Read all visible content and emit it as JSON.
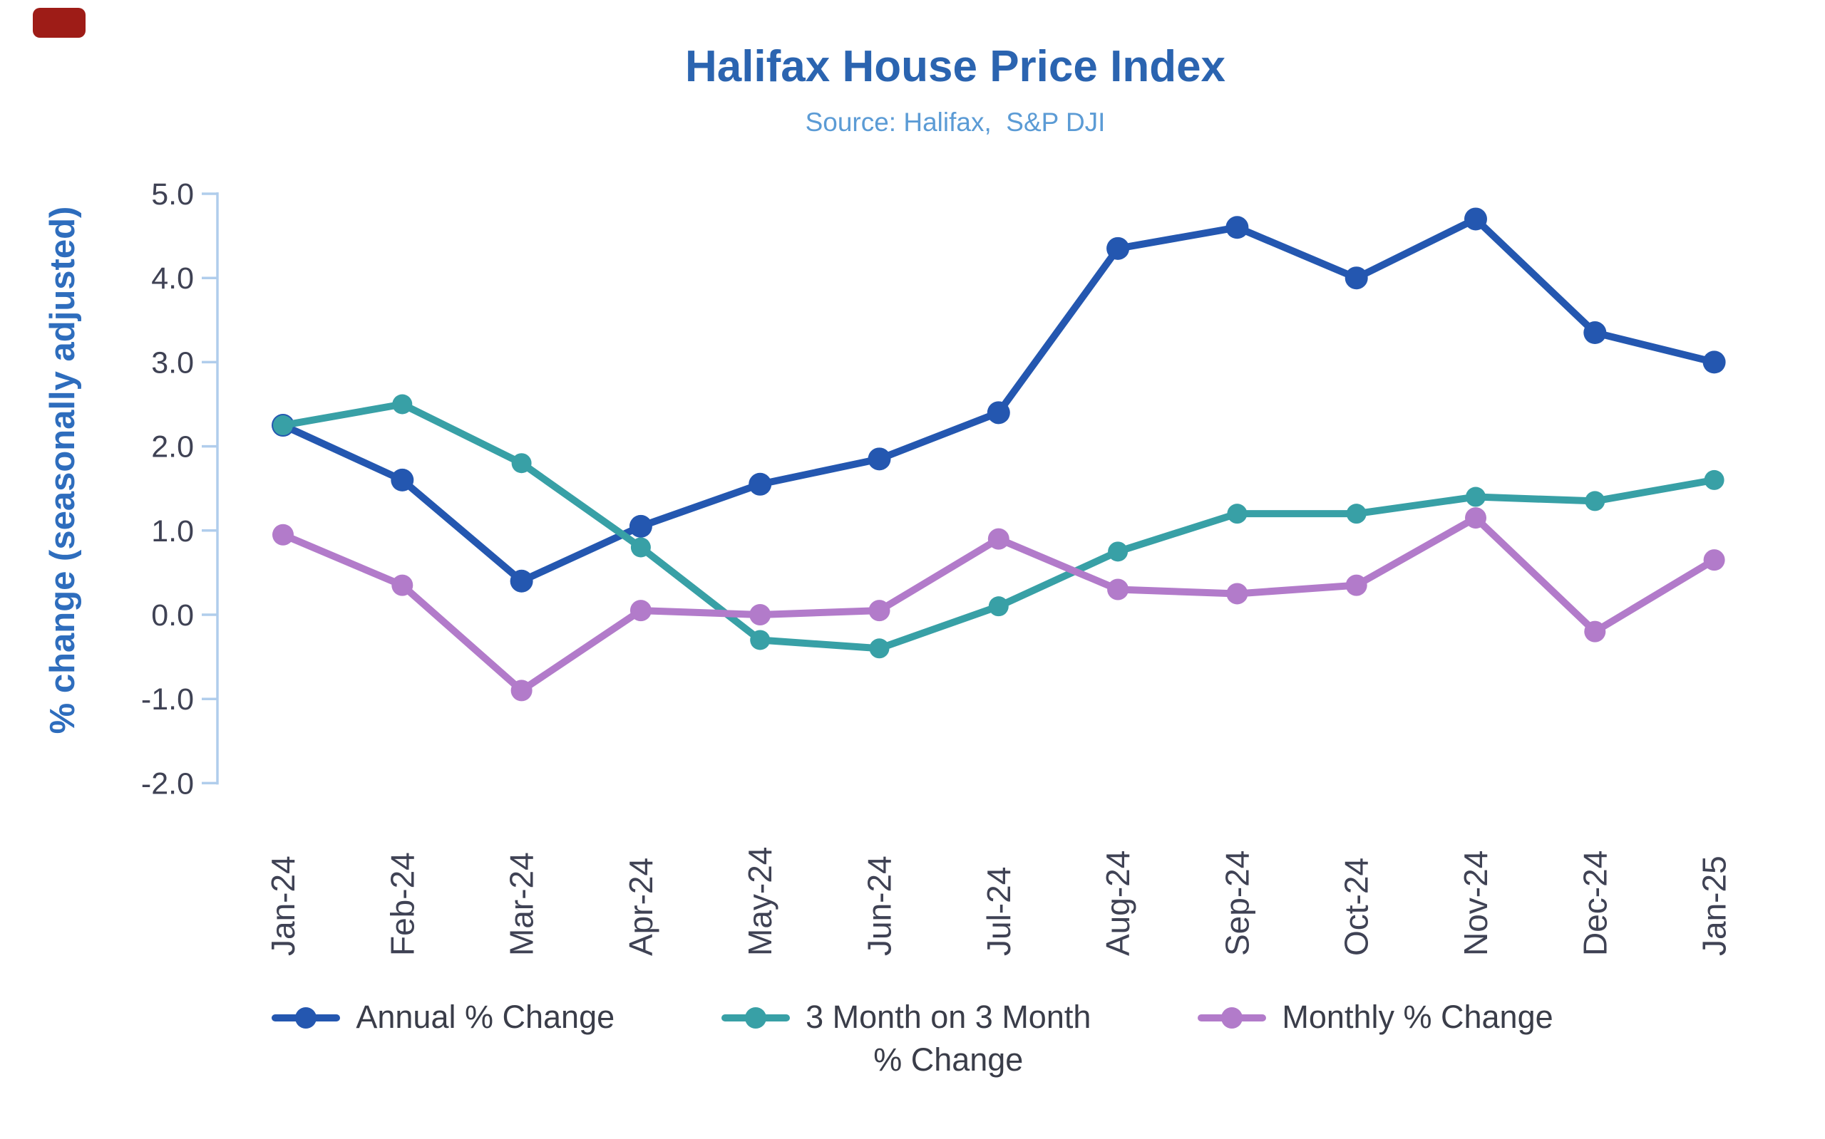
{
  "page": {
    "background": "#ffffff"
  },
  "decoration": {
    "red_marker_color": "#9e1c17"
  },
  "header": {
    "title": "Halifax House Price Index",
    "title_color": "#2b64b0",
    "subtitle": "Source: Halifax,  S&P DJI",
    "subtitle_color": "#5b9bd5"
  },
  "axes": {
    "y_axis_title": "% change (seasonally adjusted)",
    "y_axis_title_color": "#2e6dbd",
    "axis_line_color": "#b0cdec",
    "tick_label_color": "#3f4254",
    "y_tick_labels": [
      "5.0",
      "4.0",
      "3.0",
      "2.0",
      "1.0",
      "0.0",
      "-1.0",
      "-2.0"
    ]
  },
  "chart_data": {
    "type": "line",
    "title": "Halifax House Price Index",
    "subtitle": "Source: Halifax,  S&P DJI",
    "xlabel": "",
    "ylabel": "% change (seasonally adjusted)",
    "ylim": [
      -2.0,
      5.0
    ],
    "ytick_step": 1.0,
    "grid": false,
    "legend_position": "bottom",
    "categories": [
      "Jan-24",
      "Feb-24",
      "Mar-24",
      "Apr-24",
      "May-24",
      "Jun-24",
      "Jul-24",
      "Aug-24",
      "Sep-24",
      "Oct-24",
      "Nov-24",
      "Dec-24",
      "Jan-25"
    ],
    "series": [
      {
        "name": "Annual % Change",
        "color": "#2457b0",
        "marker": "circle",
        "values": [
          2.25,
          1.6,
          0.4,
          1.05,
          1.55,
          1.85,
          2.4,
          4.35,
          4.6,
          4.0,
          4.7,
          3.35,
          3.0
        ]
      },
      {
        "name": "3 Month on 3 Month % Change",
        "color": "#38a0a6",
        "marker": "circle",
        "values": [
          2.25,
          2.5,
          1.8,
          0.8,
          -0.3,
          -0.4,
          0.1,
          0.75,
          1.2,
          1.2,
          1.4,
          1.35,
          1.6
        ]
      },
      {
        "name": "Monthly % Change",
        "color": "#b27bca",
        "marker": "circle",
        "values": [
          0.95,
          0.35,
          -0.9,
          0.05,
          0.0,
          0.05,
          0.9,
          0.3,
          0.25,
          0.35,
          1.15,
          -0.2,
          0.65
        ]
      }
    ]
  },
  "legend": {
    "items": [
      {
        "id": "annual",
        "lines": [
          "Annual % Change"
        ],
        "color": "#2457b0"
      },
      {
        "id": "three-month",
        "lines": [
          "3 Month on 3 Month",
          "% Change"
        ],
        "color": "#38a0a6"
      },
      {
        "id": "monthly",
        "lines": [
          "Monthly % Change"
        ],
        "color": "#b27bca"
      }
    ]
  }
}
